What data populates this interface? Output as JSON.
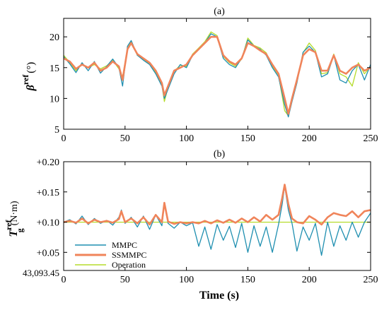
{
  "chart_data": [
    {
      "type": "line",
      "panel_label": "(a)",
      "ylabel_symbol": "β",
      "ylabel_sup": "ref",
      "ylabel_unit": "(°)",
      "xlim": [
        0,
        250
      ],
      "ylim": [
        5,
        23
      ],
      "x_ticks": [
        0,
        50,
        100,
        150,
        200,
        250
      ],
      "x_tick_labels": [
        "0",
        "50",
        "100",
        "150",
        "200",
        "250"
      ],
      "y_ticks": [
        5,
        10,
        15,
        20
      ],
      "y_tick_labels": [
        "5",
        "10",
        "15",
        "20"
      ],
      "grid": false,
      "x": [
        0,
        5,
        10,
        15,
        20,
        25,
        30,
        35,
        40,
        45,
        48,
        52,
        55,
        60,
        65,
        70,
        75,
        80,
        82,
        85,
        90,
        95,
        100,
        105,
        110,
        115,
        120,
        125,
        130,
        135,
        140,
        145,
        150,
        155,
        160,
        165,
        170,
        175,
        180,
        183,
        186,
        190,
        195,
        200,
        205,
        210,
        215,
        220,
        225,
        230,
        235,
        240,
        245,
        250
      ],
      "series": [
        {
          "key": "mmpc",
          "color": "#1f8fb0",
          "values": [
            16.8,
            15.6,
            14.2,
            15.8,
            14.5,
            16.0,
            14.1,
            15.2,
            16.4,
            15.0,
            12.0,
            18.5,
            19.4,
            17.0,
            16.2,
            15.5,
            14.0,
            12.0,
            10.0,
            11.5,
            14.0,
            15.5,
            15.0,
            17.0,
            18.0,
            19.0,
            20.5,
            20.0,
            16.5,
            15.5,
            15.0,
            16.5,
            19.5,
            18.5,
            18.0,
            17.0,
            15.0,
            13.5,
            9.0,
            7.0,
            9.5,
            12.5,
            17.5,
            18.5,
            17.5,
            13.5,
            14.0,
            17.0,
            13.0,
            12.5,
            14.5,
            15.5,
            13.0,
            15.5
          ]
        },
        {
          "key": "ssmmpc",
          "color": "#f0845a",
          "values": [
            16.5,
            16.0,
            14.8,
            15.5,
            15.0,
            15.8,
            14.5,
            15.0,
            16.0,
            15.2,
            13.0,
            18.0,
            19.0,
            17.2,
            16.5,
            15.8,
            14.5,
            12.5,
            10.5,
            12.0,
            14.5,
            15.0,
            15.5,
            17.0,
            18.0,
            19.0,
            20.0,
            20.0,
            17.0,
            16.0,
            15.5,
            16.5,
            19.0,
            18.5,
            17.8,
            17.2,
            15.5,
            14.0,
            10.0,
            7.5,
            10.0,
            13.0,
            17.0,
            18.0,
            17.5,
            14.5,
            14.5,
            17.0,
            14.5,
            14.0,
            15.0,
            15.5,
            14.5,
            15.0
          ]
        },
        {
          "key": "operation",
          "color": "#b5dc2c",
          "values": [
            17.0,
            15.8,
            14.5,
            15.6,
            15.0,
            15.5,
            14.8,
            15.3,
            16.2,
            14.8,
            13.5,
            18.2,
            19.2,
            17.0,
            16.4,
            15.6,
            14.2,
            12.2,
            9.5,
            11.8,
            14.4,
            15.4,
            15.2,
            17.2,
            18.2,
            19.2,
            20.8,
            20.2,
            16.8,
            15.8,
            15.2,
            16.4,
            19.8,
            18.6,
            18.2,
            17.4,
            15.2,
            13.8,
            8.0,
            7.2,
            9.8,
            12.8,
            17.4,
            19.0,
            17.8,
            14.0,
            14.2,
            17.2,
            14.0,
            13.5,
            12.0,
            15.8,
            14.0,
            15.2
          ]
        }
      ]
    },
    {
      "type": "line",
      "panel_label": "(b)",
      "ylabel_symbol": "T",
      "ylabel_sup": "ref",
      "ylabel_sub": "g",
      "ylabel_unit": "(N·m)",
      "xlabel": "Time (s)",
      "xlim": [
        0,
        250
      ],
      "ylim": [
        0.02,
        0.2
      ],
      "x_ticks": [
        0,
        50,
        100,
        150,
        200,
        250
      ],
      "x_tick_labels": [
        "0",
        "50",
        "100",
        "150",
        "200",
        "250"
      ],
      "y_ticks": [
        0.05,
        0.1,
        0.15,
        0.2
      ],
      "y_tick_labels": [
        "+0.05",
        "+0.10",
        "+0.15",
        "+0.20"
      ],
      "y_extra_label": "43,093.45",
      "grid": false,
      "legend_position": "bottom-left",
      "legend": [
        "MMPC",
        "SSMMPC",
        "Operation"
      ],
      "x": [
        0,
        5,
        10,
        15,
        20,
        25,
        30,
        35,
        40,
        45,
        47,
        50,
        55,
        60,
        65,
        70,
        75,
        80,
        82,
        85,
        90,
        95,
        100,
        105,
        110,
        115,
        120,
        125,
        130,
        135,
        140,
        145,
        150,
        155,
        160,
        165,
        170,
        175,
        178,
        180,
        183,
        186,
        190,
        195,
        200,
        205,
        210,
        215,
        220,
        225,
        230,
        235,
        240,
        245,
        250
      ],
      "series": [
        {
          "key": "mmpc",
          "color": "#1f8fb0",
          "values": [
            0.1,
            0.104,
            0.097,
            0.11,
            0.096,
            0.106,
            0.098,
            0.103,
            0.095,
            0.108,
            0.12,
            0.098,
            0.108,
            0.092,
            0.11,
            0.088,
            0.112,
            0.094,
            0.13,
            0.098,
            0.09,
            0.1,
            0.094,
            0.099,
            0.06,
            0.092,
            0.055,
            0.096,
            0.07,
            0.093,
            0.058,
            0.098,
            0.05,
            0.094,
            0.06,
            0.092,
            0.05,
            0.096,
            0.13,
            0.16,
            0.12,
            0.098,
            0.052,
            0.092,
            0.07,
            0.098,
            0.045,
            0.1,
            0.06,
            0.094,
            0.07,
            0.1,
            0.075,
            0.1,
            0.115
          ]
        },
        {
          "key": "ssmmpc",
          "color": "#f0845a",
          "values": [
            0.1,
            0.102,
            0.099,
            0.106,
            0.098,
            0.104,
            0.1,
            0.102,
            0.099,
            0.105,
            0.118,
            0.1,
            0.106,
            0.098,
            0.108,
            0.096,
            0.112,
            0.1,
            0.132,
            0.101,
            0.097,
            0.1,
            0.098,
            0.1,
            0.098,
            0.102,
            0.098,
            0.103,
            0.099,
            0.104,
            0.099,
            0.106,
            0.1,
            0.108,
            0.101,
            0.112,
            0.104,
            0.112,
            0.14,
            0.162,
            0.13,
            0.106,
            0.1,
            0.098,
            0.11,
            0.104,
            0.096,
            0.108,
            0.115,
            0.112,
            0.11,
            0.118,
            0.108,
            0.118,
            0.12
          ]
        },
        {
          "key": "operation",
          "color": "#b5dc2c",
          "values": [
            0.1,
            0.1,
            0.1,
            0.1,
            0.1,
            0.1,
            0.1,
            0.1,
            0.1,
            0.1,
            0.1,
            0.1,
            0.1,
            0.1,
            0.1,
            0.1,
            0.1,
            0.1,
            0.1,
            0.1,
            0.1,
            0.1,
            0.1,
            0.1,
            0.1,
            0.1,
            0.1,
            0.1,
            0.1,
            0.1,
            0.1,
            0.1,
            0.1,
            0.1,
            0.1,
            0.1,
            0.1,
            0.1,
            0.1,
            0.1,
            0.1,
            0.1,
            0.1,
            0.1,
            0.1,
            0.1,
            0.1,
            0.1,
            0.1,
            0.1,
            0.1,
            0.1,
            0.1,
            0.1,
            0.1
          ]
        }
      ]
    }
  ]
}
